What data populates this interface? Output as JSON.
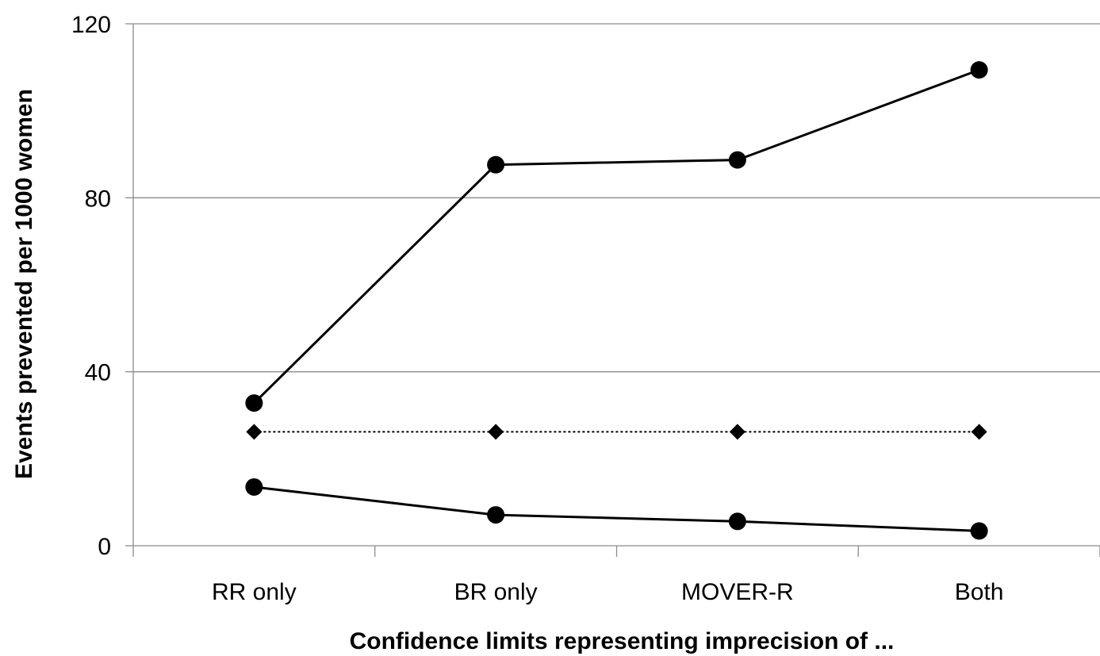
{
  "chart_data": {
    "type": "line",
    "title": "",
    "xlabel": "Confidence limits representing imprecision of ...",
    "ylabel": "Events prevented per 1000 women",
    "categories": [
      "RR only",
      "BR only",
      "MOVER-R",
      "Both"
    ],
    "ylim": [
      0,
      120
    ],
    "yticks": [
      0,
      40,
      80,
      120
    ],
    "grid": "horizontal",
    "legend": "none",
    "series": [
      {
        "values": [
          32.8,
          87.6,
          88.7,
          109.4
        ],
        "style": "solid",
        "marker": "circle",
        "color": "#000000"
      },
      {
        "values": [
          26.2,
          26.2,
          26.2,
          26.2
        ],
        "style": "dotted",
        "marker": "diamond",
        "color": "#000000"
      },
      {
        "values": [
          13.5,
          7.1,
          5.6,
          3.4
        ],
        "style": "solid",
        "marker": "circle",
        "color": "#000000"
      }
    ]
  }
}
